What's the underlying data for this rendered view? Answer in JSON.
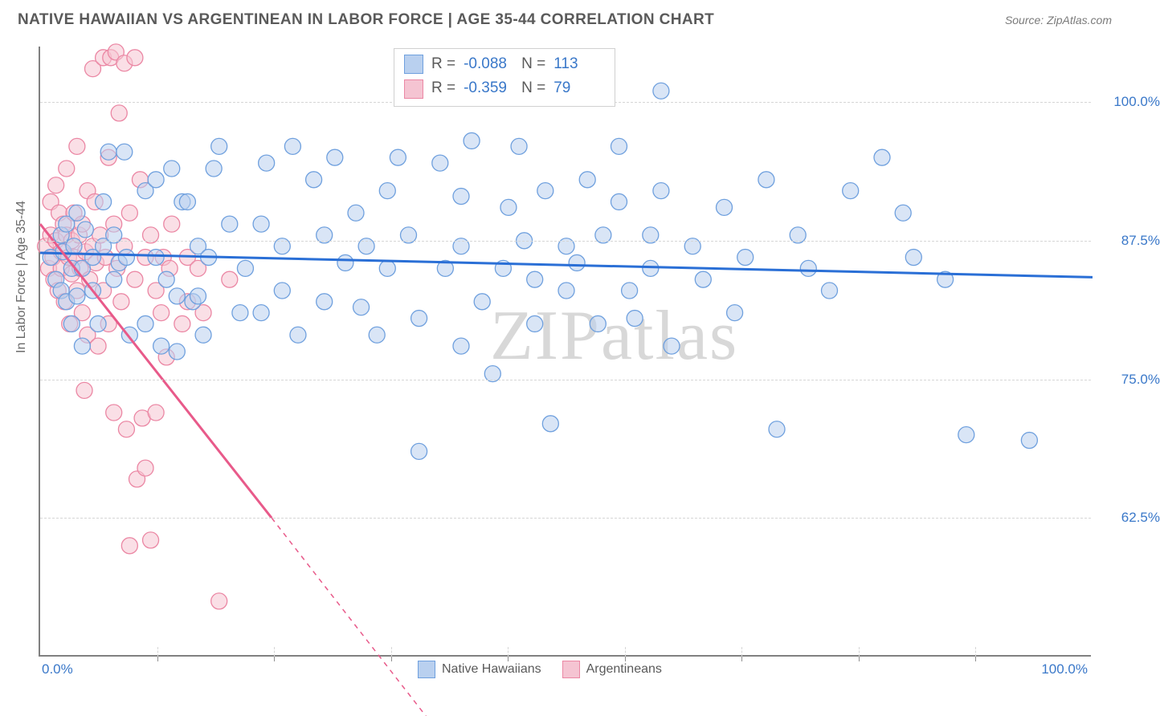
{
  "header": {
    "title": "NATIVE HAWAIIAN VS ARGENTINEAN IN LABOR FORCE | AGE 35-44 CORRELATION CHART",
    "source_label": "Source: ",
    "source_name": "ZipAtlas.com"
  },
  "chart": {
    "type": "scatter",
    "ylabel": "In Labor Force | Age 35-44",
    "xlim": [
      0,
      100
    ],
    "ylim": [
      50,
      105
    ],
    "y_ticks": [
      62.5,
      75.0,
      87.5,
      100.0
    ],
    "y_tick_labels": [
      "62.5%",
      "75.0%",
      "87.5%",
      "100.0%"
    ],
    "x_min_label": "0.0%",
    "x_max_label": "100.0%",
    "x_tick_count": 9,
    "background_color": "#ffffff",
    "grid_color": "#d6d6d6",
    "axis_color": "#808080",
    "marker_radius": 10,
    "marker_opacity": 0.55,
    "series": [
      {
        "name": "Native Hawaiians",
        "color_fill": "#b9d0ef",
        "color_stroke": "#6fa0de",
        "line_color": "#2a6fd6",
        "line_width": 3,
        "line_dash": "",
        "r": -0.088,
        "n": 113,
        "trend": {
          "x1": 0,
          "y1": 86.4,
          "x2": 100,
          "y2": 84.2
        },
        "points": [
          [
            1,
            86
          ],
          [
            1.5,
            84
          ],
          [
            2,
            88
          ],
          [
            2,
            83
          ],
          [
            2.2,
            86.5
          ],
          [
            2.5,
            82
          ],
          [
            2.5,
            89
          ],
          [
            3,
            85
          ],
          [
            3,
            80
          ],
          [
            3.2,
            87
          ],
          [
            3.5,
            82.5
          ],
          [
            3.5,
            90
          ],
          [
            4,
            78
          ],
          [
            4,
            85
          ],
          [
            4.3,
            88.5
          ],
          [
            5,
            86
          ],
          [
            5,
            83
          ],
          [
            5.5,
            80
          ],
          [
            6,
            87
          ],
          [
            6,
            91
          ],
          [
            6.5,
            95.5
          ],
          [
            7,
            84
          ],
          [
            7,
            88
          ],
          [
            7.5,
            85.5
          ],
          [
            8,
            95.5
          ],
          [
            8.2,
            86
          ],
          [
            8.5,
            79
          ],
          [
            10,
            80
          ],
          [
            10,
            92
          ],
          [
            11,
            93
          ],
          [
            11,
            86
          ],
          [
            11.5,
            78
          ],
          [
            12,
            84
          ],
          [
            12.5,
            94
          ],
          [
            13,
            82.5
          ],
          [
            13,
            77.5
          ],
          [
            13.5,
            91
          ],
          [
            14,
            91
          ],
          [
            14.5,
            82
          ],
          [
            15,
            82.5
          ],
          [
            15,
            87
          ],
          [
            15.5,
            79
          ],
          [
            16,
            86
          ],
          [
            16.5,
            94
          ],
          [
            17,
            96
          ],
          [
            18,
            89
          ],
          [
            19,
            81
          ],
          [
            19.5,
            85
          ],
          [
            21,
            81
          ],
          [
            21,
            89
          ],
          [
            21.5,
            94.5
          ],
          [
            23,
            83
          ],
          [
            23,
            87
          ],
          [
            24,
            96
          ],
          [
            24.5,
            79
          ],
          [
            26,
            93
          ],
          [
            27,
            88
          ],
          [
            27,
            82
          ],
          [
            28,
            95
          ],
          [
            29,
            85.5
          ],
          [
            30,
            90
          ],
          [
            30.5,
            81.5
          ],
          [
            31,
            87
          ],
          [
            32,
            79
          ],
          [
            33,
            92
          ],
          [
            33,
            85
          ],
          [
            34,
            95
          ],
          [
            35,
            88
          ],
          [
            36,
            80.5
          ],
          [
            36,
            68.5
          ],
          [
            38,
            94.5
          ],
          [
            38.5,
            85
          ],
          [
            40,
            78
          ],
          [
            40,
            87
          ],
          [
            40,
            91.5
          ],
          [
            41,
            96.5
          ],
          [
            42,
            82
          ],
          [
            43,
            75.5
          ],
          [
            44,
            85
          ],
          [
            44.5,
            90.5
          ],
          [
            45.5,
            96
          ],
          [
            46,
            87.5
          ],
          [
            47,
            84
          ],
          [
            47,
            80
          ],
          [
            48,
            92
          ],
          [
            48.5,
            71
          ],
          [
            50,
            87
          ],
          [
            50,
            83
          ],
          [
            51,
            85.5
          ],
          [
            52,
            93
          ],
          [
            53,
            80
          ],
          [
            53.5,
            88
          ],
          [
            55,
            91
          ],
          [
            55,
            96
          ],
          [
            56,
            83
          ],
          [
            56.5,
            80.5
          ],
          [
            58,
            88
          ],
          [
            58,
            85
          ],
          [
            59,
            92
          ],
          [
            59,
            101
          ],
          [
            60,
            78
          ],
          [
            62,
            87
          ],
          [
            63,
            84
          ],
          [
            65,
            90.5
          ],
          [
            66,
            81
          ],
          [
            67,
            86
          ],
          [
            69,
            93
          ],
          [
            70,
            70.5
          ],
          [
            72,
            88
          ],
          [
            73,
            85
          ],
          [
            75,
            83
          ],
          [
            77,
            92
          ],
          [
            80,
            95
          ],
          [
            82,
            90
          ],
          [
            83,
            86
          ],
          [
            86,
            84
          ],
          [
            88,
            70
          ],
          [
            94,
            69.5
          ]
        ]
      },
      {
        "name": "Argentineans",
        "color_fill": "#f5c4d2",
        "color_stroke": "#eb87a4",
        "line_color": "#e85a8a",
        "line_width": 3,
        "line_dash": "",
        "r": -0.359,
        "n": 79,
        "trend": {
          "x1": 0,
          "y1": 89.0,
          "x2": 22,
          "y2": 62.5
        },
        "trend_ext": {
          "x1": 22,
          "y1": 62.5,
          "x2": 38,
          "y2": 43
        },
        "points": [
          [
            0.5,
            87
          ],
          [
            0.8,
            85
          ],
          [
            1,
            88
          ],
          [
            1,
            91
          ],
          [
            1.2,
            86
          ],
          [
            1.3,
            84
          ],
          [
            1.5,
            92.5
          ],
          [
            1.5,
            87.5
          ],
          [
            1.7,
            83
          ],
          [
            1.8,
            90
          ],
          [
            2,
            86.5
          ],
          [
            2,
            85
          ],
          [
            2.2,
            89
          ],
          [
            2.3,
            82
          ],
          [
            2.5,
            88
          ],
          [
            2.5,
            94
          ],
          [
            2.7,
            86
          ],
          [
            2.8,
            80
          ],
          [
            3,
            87.5
          ],
          [
            3,
            84.5
          ],
          [
            3.2,
            90
          ],
          [
            3.3,
            86
          ],
          [
            3.5,
            83
          ],
          [
            3.5,
            96
          ],
          [
            3.7,
            88
          ],
          [
            3.8,
            85
          ],
          [
            4,
            81
          ],
          [
            4,
            89
          ],
          [
            4.2,
            74
          ],
          [
            4.3,
            86.5
          ],
          [
            4.5,
            92
          ],
          [
            4.5,
            79
          ],
          [
            4.7,
            84
          ],
          [
            5,
            87
          ],
          [
            5,
            103
          ],
          [
            5.2,
            91
          ],
          [
            5.3,
            85.5
          ],
          [
            5.5,
            78
          ],
          [
            5.7,
            88
          ],
          [
            6,
            83
          ],
          [
            6,
            104
          ],
          [
            6.2,
            86
          ],
          [
            6.5,
            95
          ],
          [
            6.5,
            80
          ],
          [
            6.7,
            104
          ],
          [
            7,
            89
          ],
          [
            7,
            72
          ],
          [
            7.2,
            104.5
          ],
          [
            7.3,
            85
          ],
          [
            7.5,
            99
          ],
          [
            7.7,
            82
          ],
          [
            8,
            87
          ],
          [
            8,
            103.5
          ],
          [
            8.2,
            70.5
          ],
          [
            8.5,
            90
          ],
          [
            8.5,
            60
          ],
          [
            9,
            84
          ],
          [
            9,
            104
          ],
          [
            9.2,
            66
          ],
          [
            9.5,
            93
          ],
          [
            9.7,
            71.5
          ],
          [
            10,
            86
          ],
          [
            10,
            67
          ],
          [
            10.5,
            88
          ],
          [
            10.5,
            60.5
          ],
          [
            11,
            83
          ],
          [
            11,
            72
          ],
          [
            11.5,
            81
          ],
          [
            11.7,
            86
          ],
          [
            12,
            77
          ],
          [
            12.3,
            85
          ],
          [
            12.5,
            89
          ],
          [
            13.5,
            80
          ],
          [
            14,
            86
          ],
          [
            14,
            82
          ],
          [
            15,
            85
          ],
          [
            15.5,
            81
          ],
          [
            17,
            55
          ],
          [
            18,
            84
          ]
        ]
      }
    ]
  },
  "stats_box": {
    "r_label": "R =",
    "n_label": "N ="
  },
  "legend": {
    "items": [
      "Native Hawaiians",
      "Argentineans"
    ]
  },
  "watermark": {
    "text_a": "ZIP",
    "text_b": "atlas"
  }
}
